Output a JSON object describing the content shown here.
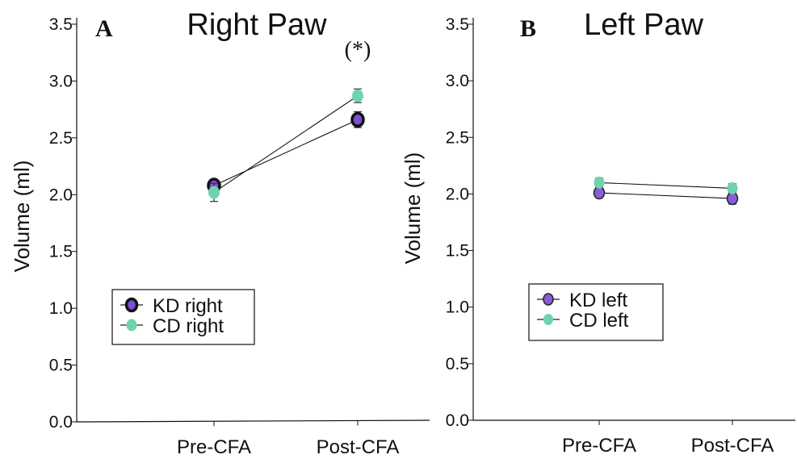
{
  "chart_data": [
    {
      "type": "line",
      "panel_letter": "A",
      "title": "Right Paw",
      "xlabel": "",
      "ylabel": "Volume (ml)",
      "categories": [
        "Pre-CFA",
        "Post-CFA"
      ],
      "ylim": [
        0,
        3.5
      ],
      "yticks": [
        "0.0",
        "0.5",
        "1.0",
        "1.5",
        "2.0",
        "2.5",
        "3.0",
        "3.5"
      ],
      "annotations": [
        {
          "text": "(*)",
          "category": "Post-CFA"
        }
      ],
      "series": [
        {
          "name": "KD right",
          "values": [
            2.08,
            2.66
          ],
          "errors": [
            0.05,
            0.07
          ],
          "color": "#7b4fd6",
          "marker": "outlined-circle"
        },
        {
          "name": "CD right",
          "values": [
            2.02,
            2.87
          ],
          "errors": [
            0.08,
            0.06
          ],
          "color": "#6fd3ab",
          "marker": "circle"
        }
      ],
      "legend_position": "lower-left",
      "grid": false
    },
    {
      "type": "line",
      "panel_letter": "B",
      "title": "Left Paw",
      "xlabel": "",
      "ylabel": "Volume (ml)",
      "categories": [
        "Pre-CFA",
        "Post-CFA"
      ],
      "ylim": [
        0,
        3.5
      ],
      "yticks": [
        "0.0",
        "0.5",
        "1.0",
        "1.5",
        "2.0",
        "2.5",
        "3.0",
        "3.5"
      ],
      "annotations": [],
      "series": [
        {
          "name": "KD left",
          "values": [
            2.01,
            1.96
          ],
          "errors": [
            0.04,
            0.05
          ],
          "color": "#8b5bd8",
          "marker": "circle"
        },
        {
          "name": "CD left",
          "values": [
            2.1,
            2.05
          ],
          "errors": [
            0.04,
            0.04
          ],
          "color": "#6fd3ab",
          "marker": "circle"
        }
      ],
      "legend_position": "lower-left",
      "grid": false
    }
  ]
}
